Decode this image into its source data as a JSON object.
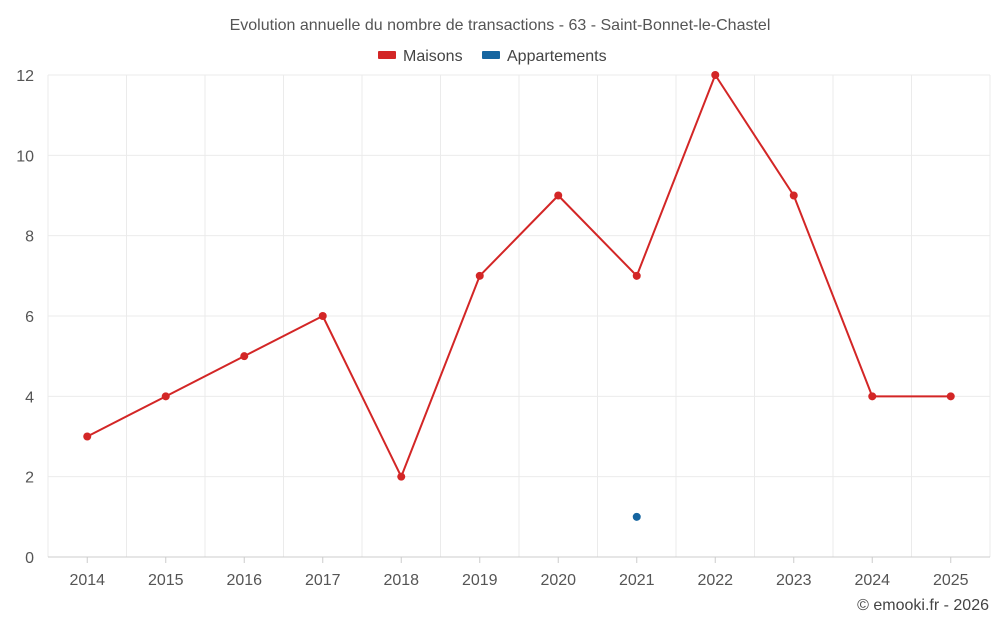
{
  "chart_data": {
    "type": "line",
    "title": "Evolution annuelle du nombre de transactions - 63 - Saint-Bonnet-le-Chastel",
    "categories": [
      "2014",
      "2015",
      "2016",
      "2017",
      "2018",
      "2019",
      "2020",
      "2021",
      "2022",
      "2023",
      "2024",
      "2025"
    ],
    "series": [
      {
        "name": "Maisons",
        "color": "#d32626",
        "values": [
          3,
          4,
          5,
          6,
          2,
          7,
          9,
          7,
          12,
          9,
          4,
          4
        ]
      },
      {
        "name": "Appartements",
        "color": "#1565a0",
        "values": [
          null,
          null,
          null,
          null,
          null,
          null,
          null,
          1,
          null,
          null,
          null,
          null
        ]
      }
    ],
    "yticks": [
      "0",
      "2",
      "4",
      "6",
      "8",
      "10",
      "12"
    ],
    "ylim": [
      0,
      12
    ],
    "xlabel": "",
    "ylabel": "",
    "grid": true,
    "legend_position": "top-center"
  },
  "credit": "© emooki.fr - 2026"
}
